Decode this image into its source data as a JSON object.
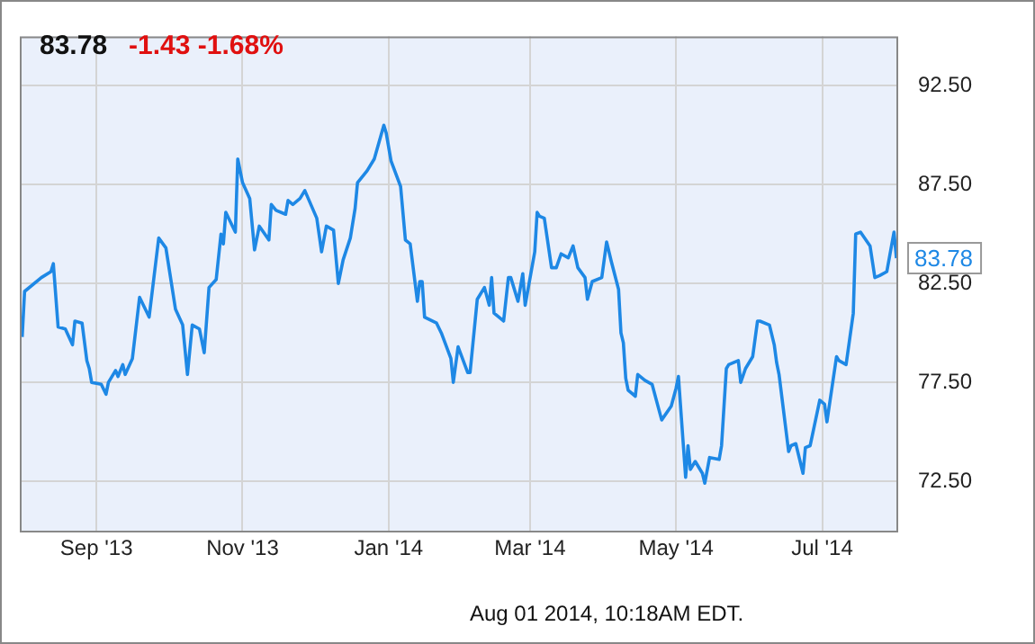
{
  "chart_data": {
    "type": "line",
    "title": "83.78",
    "subtitle": "-1.43 -1.68%",
    "annotations": [
      {
        "text": "83.78",
        "x": "2014-08-01",
        "y": 83.78
      },
      "Aug 01 2014, 10:18AM EDT."
    ],
    "xlim": [
      "2013-07-31",
      "2014-08-01"
    ],
    "xticks": [
      {
        "value": "2013-09-01",
        "label": "Sep '13"
      },
      {
        "value": "2013-11-01",
        "label": "Nov '13"
      },
      {
        "value": "2014-01-01",
        "label": "Jan '14"
      },
      {
        "value": "2014-03-01",
        "label": "Mar '14"
      },
      {
        "value": "2014-05-01",
        "label": "May '14"
      },
      {
        "value": "2014-07-01",
        "label": "Jul '14"
      }
    ],
    "ylim": [
      70,
      95
    ],
    "yticks": [
      {
        "value": 72.5,
        "label": "72.50"
      },
      {
        "value": 77.5,
        "label": "77.50"
      },
      {
        "value": 82.5,
        "label": "82.50"
      },
      {
        "value": 87.5,
        "label": "87.50"
      },
      {
        "value": 92.5,
        "label": "92.50"
      }
    ],
    "grid": true,
    "legend": false,
    "marker": "none",
    "line_style": "solid",
    "series": [
      {
        "color": "#1e88e5",
        "x": [
          "2013-08-01",
          "2013-08-02",
          "2013-08-09",
          "2013-08-13",
          "2013-08-14",
          "2013-08-16",
          "2013-08-19",
          "2013-08-22",
          "2013-08-23",
          "2013-08-26",
          "2013-08-28",
          "2013-08-29",
          "2013-08-30",
          "2013-09-03",
          "2013-09-05",
          "2013-09-06",
          "2013-09-09",
          "2013-09-10",
          "2013-09-12",
          "2013-09-13",
          "2013-09-16",
          "2013-09-19",
          "2013-09-23",
          "2013-09-27",
          "2013-09-30",
          "2013-10-04",
          "2013-10-07",
          "2013-10-09",
          "2013-10-11",
          "2013-10-14",
          "2013-10-16",
          "2013-10-18",
          "2013-10-21",
          "2013-10-23",
          "2013-10-24",
          "2013-10-25",
          "2013-10-29",
          "2013-10-30",
          "2013-11-01",
          "2013-11-04",
          "2013-11-06",
          "2013-11-08",
          "2013-11-12",
          "2013-11-13",
          "2013-11-15",
          "2013-11-19",
          "2013-11-20",
          "2013-11-22",
          "2013-11-25",
          "2013-11-27",
          "2013-12-02",
          "2013-12-04",
          "2013-12-06",
          "2013-12-09",
          "2013-12-11",
          "2013-12-13",
          "2013-12-16",
          "2013-12-18",
          "2013-12-19",
          "2013-12-23",
          "2013-12-26",
          "2013-12-30",
          "2013-12-31",
          "2014-01-02",
          "2014-01-06",
          "2014-01-08",
          "2014-01-10",
          "2014-01-13",
          "2014-01-14",
          "2014-01-15",
          "2014-01-16",
          "2014-01-21",
          "2014-01-23",
          "2014-01-27",
          "2014-01-28",
          "2014-01-30",
          "2014-02-03",
          "2014-02-04",
          "2014-02-07",
          "2014-02-10",
          "2014-02-12",
          "2014-02-13",
          "2014-02-14",
          "2014-02-18",
          "2014-02-20",
          "2014-02-21",
          "2014-02-24",
          "2014-02-26",
          "2014-02-27",
          "2014-03-03",
          "2014-03-04",
          "2014-03-05",
          "2014-03-07",
          "2014-03-10",
          "2014-03-12",
          "2014-03-14",
          "2014-03-17",
          "2014-03-19",
          "2014-03-21",
          "2014-03-24",
          "2014-03-25",
          "2014-03-27",
          "2014-03-31",
          "2014-04-01",
          "2014-04-02",
          "2014-04-04",
          "2014-04-07",
          "2014-04-08",
          "2014-04-09",
          "2014-04-10",
          "2014-04-11",
          "2014-04-14",
          "2014-04-15",
          "2014-04-18",
          "2014-04-21",
          "2014-04-23",
          "2014-04-25",
          "2014-04-29",
          "2014-05-01",
          "2014-05-02",
          "2014-05-05",
          "2014-05-06",
          "2014-05-07",
          "2014-05-09",
          "2014-05-12",
          "2014-05-13",
          "2014-05-15",
          "2014-05-19",
          "2014-05-20",
          "2014-05-22",
          "2014-05-23",
          "2014-05-27",
          "2014-05-28",
          "2014-05-30",
          "2014-06-02",
          "2014-06-04",
          "2014-06-05",
          "2014-06-09",
          "2014-06-11",
          "2014-06-12",
          "2014-06-13",
          "2014-06-17",
          "2014-06-18",
          "2014-06-20",
          "2014-06-23",
          "2014-06-24",
          "2014-06-26",
          "2014-06-30",
          "2014-07-02",
          "2014-07-03",
          "2014-07-07",
          "2014-07-08",
          "2014-07-11",
          "2014-07-14",
          "2014-07-15",
          "2014-07-17",
          "2014-07-21",
          "2014-07-23",
          "2014-07-25",
          "2014-07-28",
          "2014-07-31",
          "2014-08-01"
        ],
        "values": [
          79.8,
          82.1,
          82.8,
          83.1,
          83.5,
          80.3,
          80.2,
          79.4,
          80.6,
          80.5,
          78.6,
          78.2,
          77.5,
          77.4,
          76.9,
          77.5,
          78.1,
          77.8,
          78.4,
          77.9,
          78.7,
          81.8,
          80.8,
          84.8,
          84.3,
          81.2,
          80.4,
          77.9,
          80.4,
          80.2,
          79.0,
          82.3,
          82.7,
          85.0,
          84.5,
          86.1,
          85.1,
          88.8,
          87.6,
          86.8,
          84.2,
          85.4,
          84.7,
          86.5,
          86.2,
          86.0,
          86.7,
          86.5,
          86.8,
          87.2,
          85.8,
          84.1,
          85.4,
          85.2,
          82.5,
          83.7,
          84.8,
          86.3,
          87.6,
          88.2,
          88.8,
          90.5,
          90.1,
          88.7,
          87.4,
          84.7,
          84.5,
          81.6,
          82.6,
          82.6,
          80.8,
          80.5,
          80.0,
          78.7,
          77.5,
          79.3,
          78.0,
          78.0,
          81.7,
          82.3,
          81.4,
          82.8,
          81.0,
          80.6,
          82.8,
          82.8,
          81.6,
          83.0,
          81.4,
          84.1,
          86.1,
          85.9,
          85.8,
          83.3,
          83.3,
          84.0,
          83.8,
          84.4,
          83.3,
          82.8,
          81.7,
          82.6,
          82.8,
          83.7,
          84.6,
          83.6,
          82.2,
          80.0,
          79.5,
          77.7,
          77.1,
          76.8,
          77.9,
          77.6,
          77.4,
          76.5,
          75.6,
          76.3,
          77.2,
          77.8,
          72.7,
          74.3,
          73.1,
          73.5,
          72.9,
          72.4,
          73.7,
          73.6,
          74.3,
          78.2,
          78.4,
          78.6,
          77.5,
          78.2,
          78.8,
          80.6,
          80.6,
          80.4,
          79.4,
          78.5,
          77.9,
          74.0,
          74.3,
          74.4,
          72.9,
          74.2,
          74.3,
          76.6,
          76.4,
          75.5,
          78.8,
          78.6,
          78.4,
          81.0,
          85.0,
          85.1,
          84.4,
          82.8,
          82.9,
          83.1,
          85.1,
          83.78
        ]
      }
    ]
  }
}
